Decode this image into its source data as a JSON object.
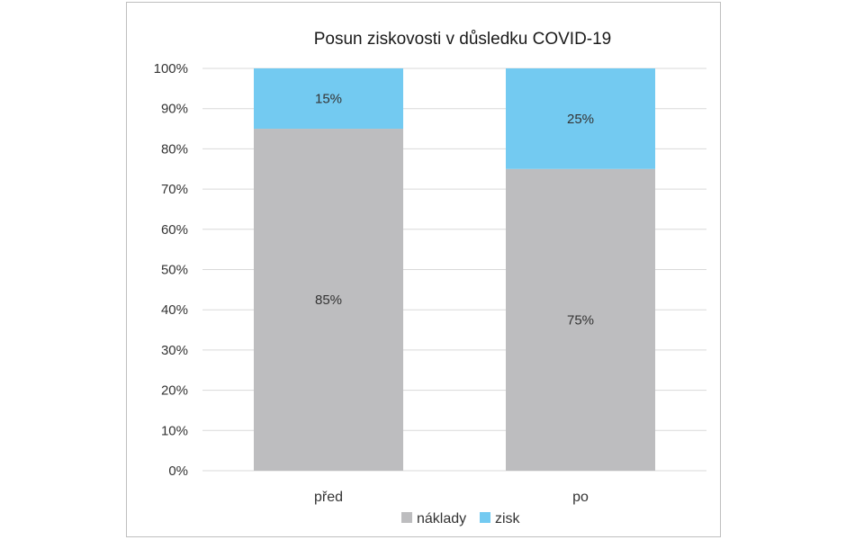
{
  "chart_data": {
    "type": "bar",
    "stacked": true,
    "title": "Posun ziskovosti v důsledku COVID-19",
    "categories": [
      "před",
      "po"
    ],
    "series": [
      {
        "name": "náklady",
        "values": [
          85,
          75
        ],
        "labels": [
          "85%",
          "75%"
        ],
        "color": "#bdbdbf"
      },
      {
        "name": "zisk",
        "values": [
          15,
          25
        ],
        "labels": [
          "15%",
          "25%"
        ],
        "color": "#73caf1"
      }
    ],
    "ylim": [
      0,
      100
    ],
    "yticks": [
      "0%",
      "10%",
      "20%",
      "30%",
      "40%",
      "50%",
      "60%",
      "70%",
      "80%",
      "90%",
      "100%"
    ],
    "grid": true,
    "gridline_color": "#d9d9d9",
    "legend_position": "bottom"
  }
}
